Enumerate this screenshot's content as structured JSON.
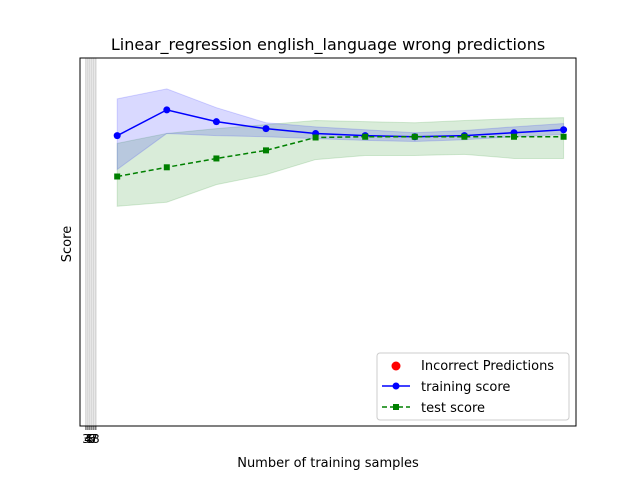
{
  "chart_data": {
    "type": "line",
    "title": "Linear_regression english_language wrong predictions",
    "xlabel": "Number of training samples",
    "ylabel": "Score",
    "xlim": [
      0,
      100
    ],
    "ylim": [
      0,
      100
    ],
    "x_tick_labels": [
      "3",
      "4",
      "5",
      "6",
      "7",
      "8"
    ],
    "x_tick_values": [
      1.2,
      1.6,
      2.0,
      2.4,
      2.8,
      3.2
    ],
    "y_tick_labels": [],
    "grid": false,
    "legend_position": "lower right",
    "legend": [
      {
        "label": "Incorrect Predictions",
        "marker": "circle",
        "color": "#ff0000"
      },
      {
        "label": "training score",
        "marker": "circle",
        "line": "solid",
        "color": "#0000ff"
      },
      {
        "label": "test score",
        "marker": "square",
        "line": "dashed",
        "color": "#008000"
      }
    ],
    "series": [
      {
        "name": "training score",
        "color": "#0000ff",
        "x": [
          7.5,
          17.5,
          27.5,
          37.5,
          47.5,
          57.5,
          67.5,
          77.5,
          87.5,
          97.5
        ],
        "values": [
          78.9,
          85.9,
          82.7,
          80.8,
          79.5,
          78.9,
          78.6,
          78.9,
          79.7,
          80.5
        ],
        "band_upper": [
          88.9,
          91.6,
          86.5,
          82.4,
          81.3,
          80.5,
          79.7,
          80.3,
          81.3,
          82.2
        ],
        "band_lower": [
          69.7,
          79.5,
          78.9,
          78.6,
          78.1,
          77.6,
          77.3,
          77.8,
          78.6,
          79.2
        ]
      },
      {
        "name": "test score",
        "color": "#008000",
        "x": [
          7.5,
          17.5,
          27.5,
          37.5,
          47.5,
          57.5,
          67.5,
          77.5,
          87.5,
          97.5
        ],
        "values": [
          67.8,
          70.3,
          72.7,
          74.9,
          78.4,
          78.6,
          78.6,
          78.6,
          78.6,
          78.6
        ],
        "band_upper": [
          76.8,
          79.5,
          80.8,
          81.9,
          83.0,
          82.7,
          82.4,
          83.0,
          83.5,
          83.8
        ],
        "band_lower": [
          59.7,
          60.8,
          65.6,
          68.3,
          72.4,
          73.5,
          73.5,
          73.8,
          72.7,
          72.7
        ]
      }
    ],
    "incorrect_predictions": {
      "name": "Incorrect Predictions",
      "color": "#ff0000",
      "points": []
    }
  }
}
